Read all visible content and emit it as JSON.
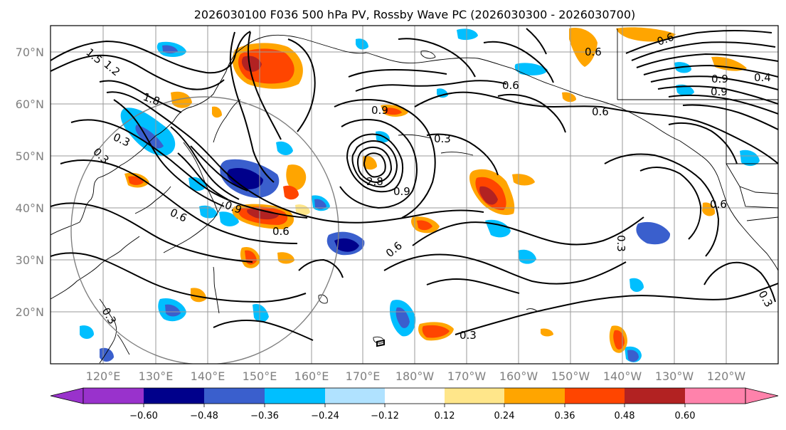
{
  "title": "2026030100 F036 500 hPa PV, Rossby Wave PC (2026030300 - 2026030700)",
  "latitude_labels": [
    "70°N",
    "60°N",
    "50°N",
    "40°N",
    "30°N",
    "20°N"
  ],
  "longitude_labels": [
    "120°E",
    "130°E",
    "140°E",
    "150°E",
    "160°E",
    "170°E",
    "180°W",
    "170°W",
    "160°W",
    "150°W",
    "140°W",
    "130°W",
    "120°W"
  ],
  "colorbar": {
    "tick_labels": [
      "−0.60",
      "−0.48",
      "−0.36",
      "−0.24",
      "−0.12",
      "0.12",
      "0.24",
      "0.36",
      "0.48",
      "0.60"
    ],
    "colors": [
      "#9932cc",
      "#00008b",
      "#3a5fcd",
      "#00bfff",
      "#b0e2ff",
      "#ffffff",
      "#ffe68a",
      "#ffa500",
      "#ff4500",
      "#b22222",
      "#ff82ab"
    ]
  },
  "contour_labels": {
    "c1": "1.5",
    "c2": "1.2",
    "c3": "1.8",
    "c4": "0.3",
    "c5": "0.3",
    "c6": "0.6",
    "c7": "0.9",
    "c8": "0.6",
    "c9": "0.9",
    "c10": "0.3",
    "c11": "2.8",
    "c12": "0.9",
    "c13": "0.6",
    "c14": "0.3",
    "c15": "0.6",
    "c16": "0.6",
    "c17": "0.6",
    "c18": "0.9",
    "c19": "0.6",
    "c20": "0.3",
    "c21": "0.3",
    "c22": "0.4",
    "c23": "0.9",
    "c24": "0.6",
    "c25": "0.3"
  }
}
